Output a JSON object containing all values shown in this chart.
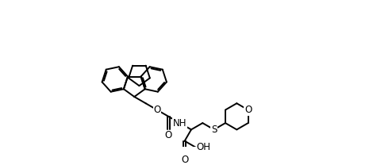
{
  "bg_color": "#ffffff",
  "line_color": "#000000",
  "line_width": 1.4,
  "figsize": [
    4.7,
    2.08
  ],
  "dpi": 100,
  "xlim": [
    0,
    4.7
  ],
  "ylim": [
    0,
    2.08
  ]
}
